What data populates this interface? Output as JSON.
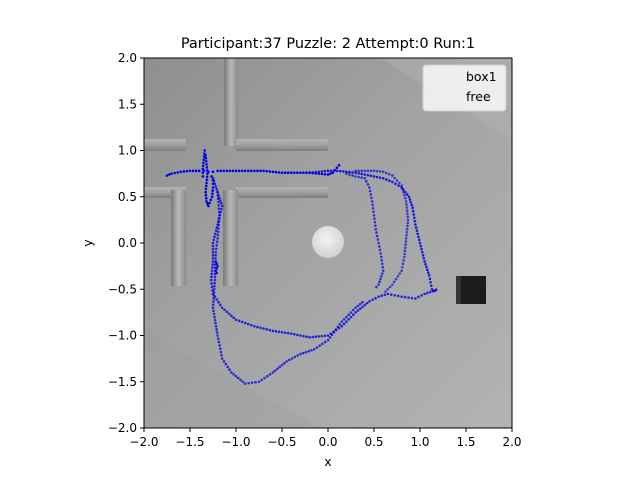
{
  "chart_data": {
    "type": "scatter",
    "title": "Participant:37 Puzzle: 2 Attempt:0 Run:1",
    "xlabel": "x",
    "ylabel": "y",
    "xlim": [
      -2.0,
      2.0
    ],
    "ylim": [
      -2.0,
      2.0
    ],
    "xticks": [
      "−2.0",
      "−1.5",
      "−1.0",
      "−0.5",
      "0.0",
      "0.5",
      "1.0",
      "1.5",
      "2.0"
    ],
    "yticks": [
      "−2.0",
      "−1.5",
      "−1.0",
      "−0.5",
      "0.0",
      "0.5",
      "1.0",
      "1.5",
      "2.0"
    ],
    "grid": false,
    "legend_position": "top-right",
    "legend": [
      {
        "label": "box1",
        "color": "#888888"
      },
      {
        "label": "free",
        "color": "#0000e6"
      }
    ],
    "trajectory_color": "#0000e6",
    "segments": [
      {
        "name": "free",
        "alpha": 1.0,
        "points": [
          [
            -1.75,
            0.73
          ],
          [
            -1.7,
            0.75
          ],
          [
            -1.6,
            0.77
          ],
          [
            -1.5,
            0.78
          ],
          [
            -1.4,
            0.78
          ],
          [
            -1.35,
            0.78
          ],
          [
            -1.3,
            0.77
          ],
          [
            -1.25,
            0.77
          ],
          [
            -1.2,
            0.78
          ],
          [
            -1.1,
            0.78
          ],
          [
            -1.0,
            0.78
          ],
          [
            -0.9,
            0.78
          ],
          [
            -0.8,
            0.78
          ],
          [
            -0.7,
            0.78
          ],
          [
            -0.6,
            0.77
          ]
        ]
      },
      {
        "name": "free",
        "alpha": 1.0,
        "points": [
          [
            -1.36,
            0.72
          ],
          [
            -1.36,
            0.8
          ],
          [
            -1.35,
            0.9
          ],
          [
            -1.34,
            1.0
          ],
          [
            -1.33,
            0.95
          ],
          [
            -1.32,
            0.85
          ],
          [
            -1.31,
            0.75
          ],
          [
            -1.32,
            0.65
          ],
          [
            -1.33,
            0.55
          ],
          [
            -1.32,
            0.45
          ],
          [
            -1.3,
            0.4
          ],
          [
            -1.26,
            0.5
          ],
          [
            -1.25,
            0.6
          ],
          [
            -1.25,
            0.68
          ],
          [
            -1.28,
            0.76
          ]
        ]
      },
      {
        "name": "free",
        "alpha": 1.0,
        "points": [
          [
            -0.6,
            0.77
          ],
          [
            -0.5,
            0.76
          ],
          [
            -0.4,
            0.76
          ],
          [
            -0.3,
            0.76
          ],
          [
            -0.2,
            0.76
          ],
          [
            -0.1,
            0.75
          ],
          [
            0.0,
            0.74
          ],
          [
            0.05,
            0.76
          ],
          [
            0.12,
            0.84
          ],
          [
            0.14,
            0.8
          ]
        ]
      },
      {
        "name": "free",
        "alpha": 0.85,
        "points": [
          [
            -0.2,
            0.76
          ],
          [
            -0.1,
            0.77
          ],
          [
            0.0,
            0.78
          ],
          [
            0.1,
            0.78
          ],
          [
            0.2,
            0.77
          ],
          [
            0.3,
            0.76
          ],
          [
            0.4,
            0.74
          ],
          [
            0.5,
            0.72
          ],
          [
            0.6,
            0.7
          ],
          [
            0.7,
            0.66
          ],
          [
            0.8,
            0.6
          ],
          [
            0.88,
            0.5
          ],
          [
            0.92,
            0.38
          ],
          [
            0.95,
            0.2
          ],
          [
            1.0,
            0.0
          ],
          [
            1.05,
            -0.2
          ],
          [
            1.1,
            -0.35
          ],
          [
            1.13,
            -0.5
          ],
          [
            1.15,
            -0.52
          ],
          [
            1.2,
            -0.49
          ]
        ]
      },
      {
        "name": "free",
        "alpha": 0.8,
        "points": [
          [
            -1.25,
            0.7
          ],
          [
            -1.2,
            0.55
          ],
          [
            -1.15,
            0.4
          ],
          [
            -1.2,
            0.2
          ],
          [
            -1.25,
            0.0
          ],
          [
            -1.25,
            -0.2
          ],
          [
            -1.27,
            -0.4
          ],
          [
            -1.25,
            -0.55
          ],
          [
            -1.15,
            -0.7
          ],
          [
            -1.0,
            -0.83
          ],
          [
            -0.8,
            -0.9
          ],
          [
            -0.6,
            -0.95
          ],
          [
            -0.4,
            -0.98
          ],
          [
            -0.2,
            -1.02
          ],
          [
            0.0,
            -1.0
          ],
          [
            0.15,
            -0.9
          ],
          [
            0.3,
            -0.75
          ],
          [
            0.45,
            -0.63
          ],
          [
            0.55,
            -0.58
          ],
          [
            0.65,
            -0.55
          ],
          [
            0.8,
            -0.58
          ],
          [
            0.95,
            -0.6
          ],
          [
            1.05,
            -0.55
          ],
          [
            1.2,
            -0.5
          ]
        ]
      },
      {
        "name": "free",
        "alpha": 0.75,
        "points": [
          [
            -1.2,
            0.55
          ],
          [
            -1.18,
            0.3
          ],
          [
            -1.2,
            0.05
          ],
          [
            -1.22,
            -0.1
          ],
          [
            -1.23,
            -0.4
          ],
          [
            -1.25,
            -0.7
          ],
          [
            -1.2,
            -1.0
          ],
          [
            -1.15,
            -1.25
          ],
          [
            -1.05,
            -1.4
          ],
          [
            -0.9,
            -1.52
          ],
          [
            -0.75,
            -1.5
          ],
          [
            -0.6,
            -1.4
          ],
          [
            -0.45,
            -1.28
          ],
          [
            -0.3,
            -1.2
          ],
          [
            -0.15,
            -1.15
          ],
          [
            0.0,
            -1.05
          ],
          [
            0.15,
            -0.85
          ],
          [
            0.3,
            -0.7
          ],
          [
            0.4,
            -0.62
          ]
        ]
      },
      {
        "name": "free",
        "alpha": 0.7,
        "points": [
          [
            0.2,
            0.75
          ],
          [
            0.3,
            0.72
          ],
          [
            0.4,
            0.7
          ],
          [
            0.45,
            0.6
          ],
          [
            0.48,
            0.45
          ],
          [
            0.5,
            0.3
          ],
          [
            0.52,
            0.15
          ],
          [
            0.55,
            0.0
          ],
          [
            0.58,
            -0.15
          ],
          [
            0.6,
            -0.3
          ],
          [
            0.55,
            -0.45
          ],
          [
            0.5,
            -0.5
          ]
        ]
      },
      {
        "name": "free",
        "alpha": 0.65,
        "points": [
          [
            0.3,
            0.78
          ],
          [
            0.4,
            0.78
          ],
          [
            0.5,
            0.78
          ],
          [
            0.6,
            0.77
          ],
          [
            0.7,
            0.73
          ],
          [
            0.8,
            0.62
          ],
          [
            0.85,
            0.45
          ],
          [
            0.87,
            0.25
          ],
          [
            0.85,
            0.05
          ],
          [
            0.83,
            -0.15
          ],
          [
            0.8,
            -0.3
          ],
          [
            0.7,
            -0.45
          ],
          [
            0.6,
            -0.55
          ]
        ]
      },
      {
        "name": "free",
        "alpha": 0.9,
        "points": [
          [
            -1.22,
            -0.2
          ],
          [
            -1.2,
            -0.25
          ],
          [
            -1.22,
            -0.3
          ],
          [
            -1.2,
            -0.35
          ]
        ]
      }
    ]
  }
}
